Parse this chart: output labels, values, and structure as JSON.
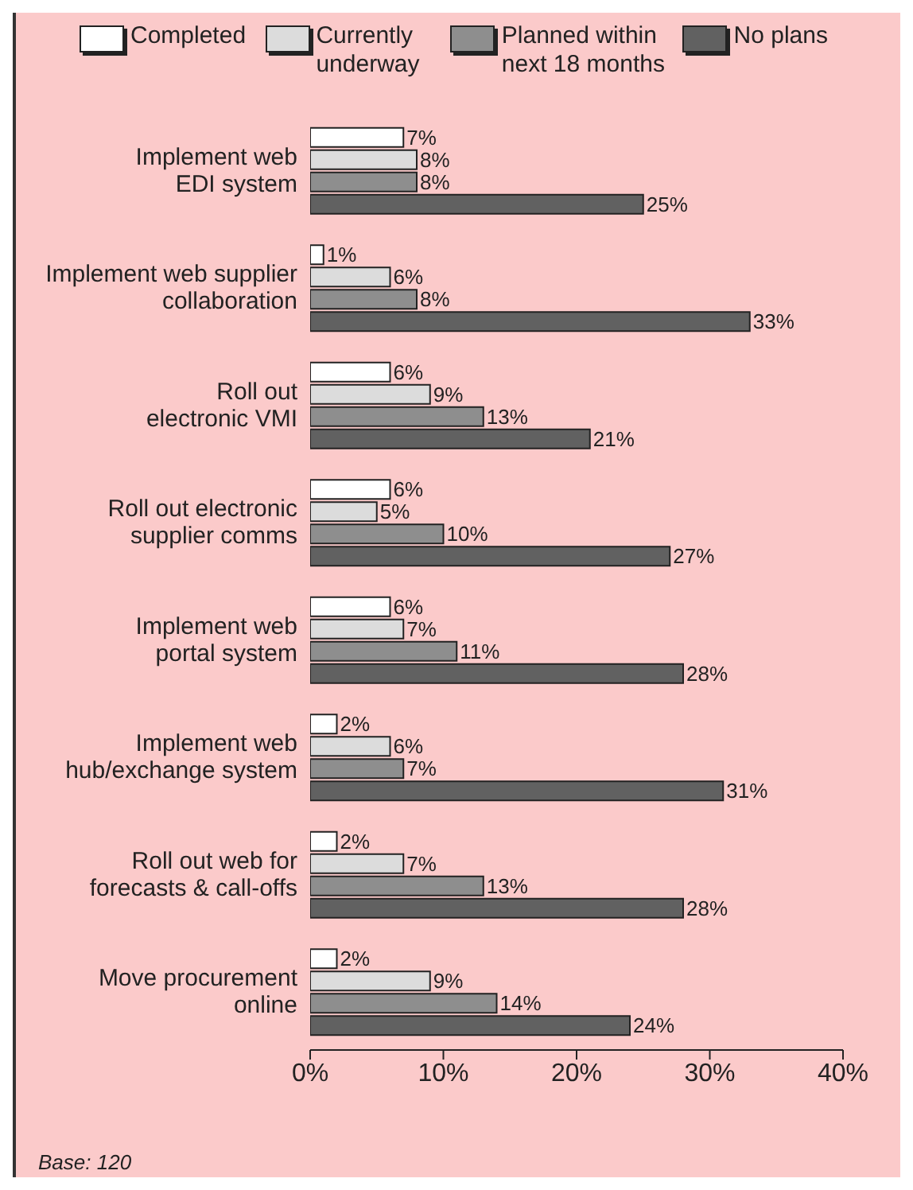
{
  "chart_data": {
    "type": "bar",
    "orientation": "horizontal",
    "categories": [
      "Implement web EDI system",
      "Implement web supplier collaboration",
      "Roll out electronic VMI",
      "Roll out electronic supplier comms",
      "Implement web portal system",
      "Implement web hub/exchange system",
      "Roll out web for forecasts & call-offs",
      "Move procurement online"
    ],
    "series": [
      {
        "name": "Completed",
        "color": "#ffffff",
        "values": [
          7,
          1,
          6,
          6,
          6,
          2,
          2,
          2
        ],
        "value_labels": [
          "7%",
          "1%",
          "6%",
          "6%",
          "6%",
          "2%",
          "2%",
          "2%"
        ]
      },
      {
        "name": "Currently underway",
        "color": "#dcdcdc",
        "values": [
          8,
          6,
          9,
          5,
          7,
          6,
          7,
          9
        ],
        "value_labels": [
          "8%",
          "6%",
          "9%",
          "5%",
          "7%",
          "6%",
          "7%",
          "9%"
        ]
      },
      {
        "name": "Planned within next 18 months",
        "color": "#8e8e8e",
        "values": [
          8,
          8,
          13,
          10,
          11,
          7,
          13,
          14
        ],
        "value_labels": [
          "8%",
          "8%",
          "13%",
          "10%",
          "11%",
          "7%",
          "13%",
          "14%"
        ]
      },
      {
        "name": "No plans",
        "color": "#616161",
        "values": [
          25,
          33,
          21,
          27,
          28,
          31,
          28,
          24
        ],
        "value_labels": [
          "25%",
          "33%",
          "21%",
          "27%",
          "28%",
          "31%",
          "28%",
          "24%"
        ]
      }
    ],
    "xlim": [
      0,
      40
    ],
    "xticks": [
      {
        "value": 0,
        "label": "0%"
      },
      {
        "value": 10,
        "label": "10%"
      },
      {
        "value": 20,
        "label": "20%"
      },
      {
        "value": 30,
        "label": "30%"
      },
      {
        "value": 40,
        "label": "40%"
      }
    ],
    "grid": false,
    "legend": "top",
    "annotations": [
      "Base: 120"
    ]
  }
}
